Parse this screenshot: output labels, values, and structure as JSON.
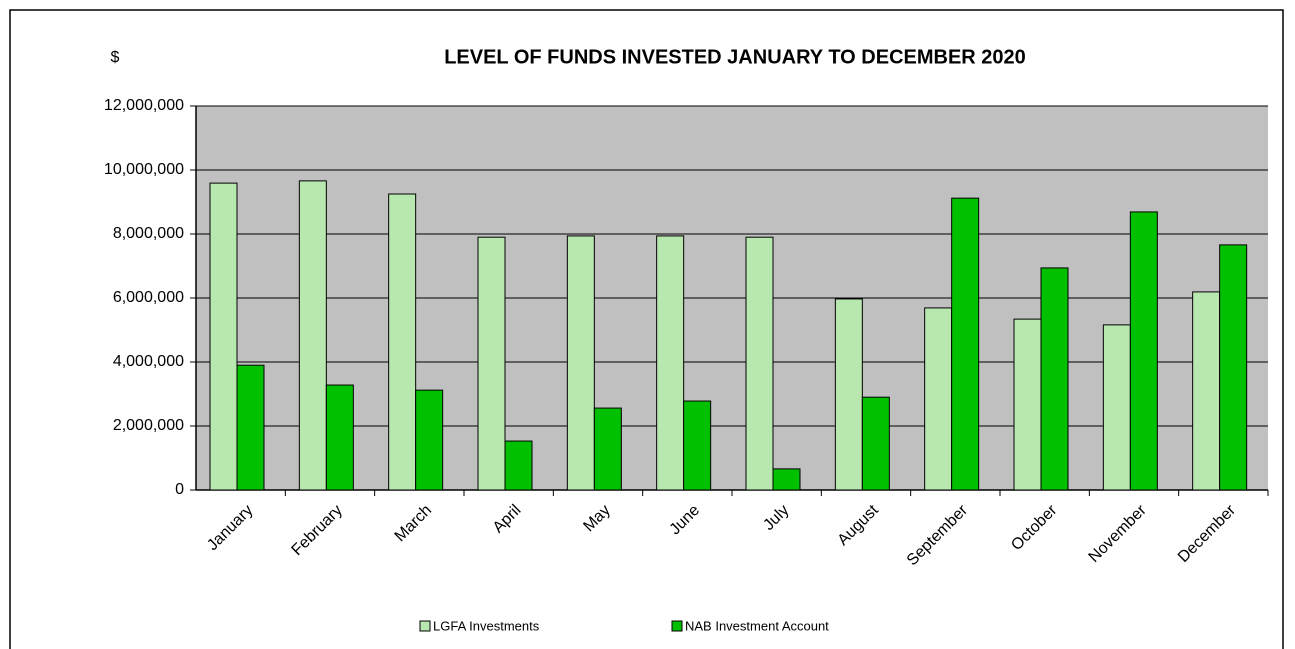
{
  "chart_data": {
    "type": "bar",
    "title": "LEVEL OF FUNDS INVESTED JANUARY TO DECEMBER 2020",
    "y_label": "$",
    "categories": [
      "January",
      "February",
      "March",
      "April",
      "May",
      "June",
      "July",
      "August",
      "September",
      "October",
      "November",
      "December"
    ],
    "series": [
      {
        "name": "LGFA Investments",
        "color": "#b8e8b0",
        "values": [
          9590000,
          9660000,
          9250000,
          7900000,
          7940000,
          7940000,
          7900000,
          5970000,
          5690000,
          5340000,
          5160000,
          6190000
        ]
      },
      {
        "name": "NAB Investment Account",
        "color": "#00c000",
        "values": [
          3900000,
          3280000,
          3120000,
          1530000,
          2560000,
          2780000,
          660000,
          2900000,
          9120000,
          6940000,
          8690000,
          7660000
        ]
      }
    ],
    "ylim": [
      0,
      12000000
    ],
    "yticks": [
      {
        "value": 0,
        "label": "0"
      },
      {
        "value": 2000000,
        "label": "2,000,000"
      },
      {
        "value": 4000000,
        "label": "4,000,000"
      },
      {
        "value": 6000000,
        "label": "6,000,000"
      },
      {
        "value": 8000000,
        "label": "8,000,000"
      },
      {
        "value": 10000000,
        "label": "10,000,000"
      },
      {
        "value": 12000000,
        "label": "12,000,000"
      }
    ],
    "grid": true,
    "plot_background": "#c0c0c0"
  }
}
